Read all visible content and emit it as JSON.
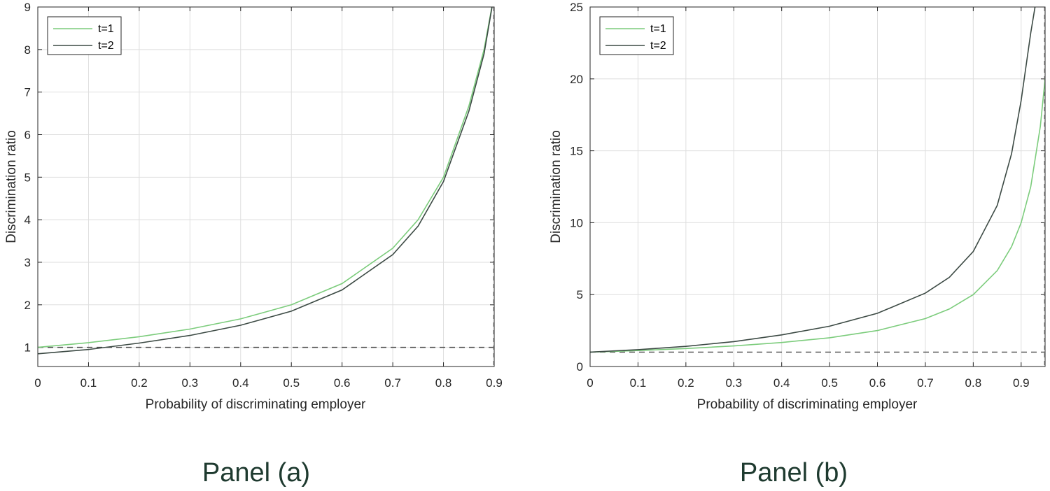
{
  "colors": {
    "t1": "#7ccc7c",
    "t2": "#3c4a44",
    "ref": "#4a4a4a",
    "caption": "#1e3a2f"
  },
  "chart_data": [
    {
      "type": "line",
      "caption": "Panel (a)",
      "xlabel": "Probability of discriminating employer",
      "ylabel": "Discrimination ratio",
      "xlim": [
        0,
        0.9
      ],
      "ylim": [
        0.55,
        9
      ],
      "xticks": [
        "0",
        "0.1",
        "0.2",
        "0.3",
        "0.4",
        "0.5",
        "0.6",
        "0.7",
        "0.8",
        "0.9"
      ],
      "yticks": [
        "1",
        "2",
        "3",
        "4",
        "5",
        "6",
        "7",
        "8",
        "9"
      ],
      "grid": true,
      "legend": "top-left",
      "reference_line": {
        "y": 1,
        "style": "dashed"
      },
      "series": [
        {
          "name": "t=1",
          "x": [
            0,
            0.1,
            0.2,
            0.3,
            0.4,
            0.5,
            0.6,
            0.7,
            0.75,
            0.8,
            0.85,
            0.88,
            0.9
          ],
          "y": [
            1,
            1.11,
            1.25,
            1.43,
            1.67,
            2.0,
            2.5,
            3.33,
            4.0,
            5.0,
            6.67,
            8.0,
            9.3
          ]
        },
        {
          "name": "t=2",
          "x": [
            0,
            0.1,
            0.2,
            0.3,
            0.4,
            0.5,
            0.6,
            0.7,
            0.75,
            0.8,
            0.85,
            0.88,
            0.9
          ],
          "y": [
            0.85,
            0.95,
            1.1,
            1.28,
            1.52,
            1.85,
            2.35,
            3.18,
            3.85,
            4.9,
            6.55,
            7.9,
            9.3
          ]
        }
      ]
    },
    {
      "type": "line",
      "caption": "Panel (b)",
      "xlabel": "Probability of discriminating employer",
      "ylabel": "Discrimination ratio",
      "xlim": [
        0,
        0.95
      ],
      "ylim": [
        0,
        25
      ],
      "xticks": [
        "0",
        "0.1",
        "0.2",
        "0.3",
        "0.4",
        "0.5",
        "0.6",
        "0.7",
        "0.8",
        "0.9"
      ],
      "yticks": [
        "0",
        "5",
        "10",
        "15",
        "20",
        "25"
      ],
      "grid": true,
      "legend": "top-left",
      "reference_line": {
        "y": 1,
        "style": "dashed"
      },
      "series": [
        {
          "name": "t=1",
          "x": [
            0,
            0.1,
            0.2,
            0.3,
            0.4,
            0.5,
            0.6,
            0.7,
            0.75,
            0.8,
            0.85,
            0.88,
            0.9,
            0.92,
            0.94,
            0.95
          ],
          "y": [
            1,
            1.11,
            1.25,
            1.43,
            1.67,
            2.0,
            2.5,
            3.33,
            4.0,
            5.0,
            6.67,
            8.33,
            10.0,
            12.5,
            16.7,
            20.0
          ]
        },
        {
          "name": "t=2",
          "x": [
            0,
            0.1,
            0.2,
            0.3,
            0.4,
            0.5,
            0.6,
            0.7,
            0.75,
            0.8,
            0.85,
            0.88,
            0.9,
            0.92,
            0.93
          ],
          "y": [
            1,
            1.17,
            1.4,
            1.73,
            2.2,
            2.8,
            3.7,
            5.1,
            6.2,
            8.0,
            11.2,
            14.8,
            18.5,
            23.2,
            25.2
          ]
        }
      ]
    }
  ]
}
